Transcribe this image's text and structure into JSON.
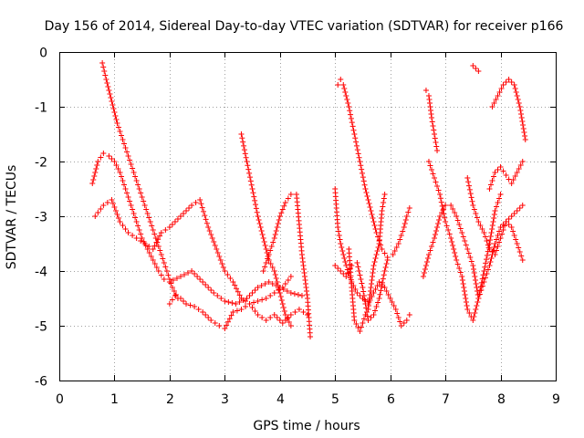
{
  "chart_data": {
    "type": "scatter",
    "title": "Day 156 of 2014, Sidereal Day-to-day VTEC variation (SDTVAR) for receiver p166",
    "xlabel": "GPS time / hours",
    "ylabel": "SDTVAR / TECUs",
    "xlim": [
      0,
      9
    ],
    "ylim": [
      -6,
      0
    ],
    "xticks": [
      0,
      1,
      2,
      3,
      4,
      5,
      6,
      7,
      8,
      9
    ],
    "yticks": [
      0,
      -1,
      -2,
      -3,
      -4,
      -5,
      -6
    ],
    "xtick_labels": [
      "0",
      "1",
      "2",
      "3",
      "4",
      "5",
      "6",
      "7",
      "8",
      "9"
    ],
    "ytick_labels": [
      "0",
      "-1",
      "-2",
      "-3",
      "-4",
      "-5",
      "-6"
    ],
    "grid": true,
    "marker": "plus",
    "color": "#ff0000",
    "series": [
      {
        "name": "track-1",
        "points": [
          [
            0.78,
            -0.2
          ],
          [
            0.85,
            -0.5
          ],
          [
            0.95,
            -0.9
          ],
          [
            1.05,
            -1.3
          ],
          [
            1.15,
            -1.6
          ],
          [
            1.25,
            -1.9
          ],
          [
            1.35,
            -2.2
          ],
          [
            1.45,
            -2.5
          ],
          [
            1.55,
            -2.8
          ],
          [
            1.65,
            -3.1
          ],
          [
            1.75,
            -3.4
          ],
          [
            1.85,
            -3.7
          ],
          [
            1.95,
            -4.0
          ],
          [
            2.05,
            -4.3
          ],
          [
            2.15,
            -4.5
          ]
        ]
      },
      {
        "name": "track-2",
        "points": [
          [
            0.6,
            -2.4
          ],
          [
            0.7,
            -2.0
          ],
          [
            0.8,
            -1.85
          ],
          [
            0.9,
            -1.9
          ],
          [
            1.0,
            -2.0
          ],
          [
            1.1,
            -2.2
          ],
          [
            1.2,
            -2.5
          ],
          [
            1.3,
            -2.8
          ],
          [
            1.4,
            -3.1
          ],
          [
            1.5,
            -3.4
          ],
          [
            1.6,
            -3.6
          ],
          [
            1.7,
            -3.8
          ],
          [
            1.8,
            -4.0
          ],
          [
            1.9,
            -4.15
          ],
          [
            2.0,
            -4.2
          ],
          [
            2.2,
            -4.1
          ],
          [
            2.4,
            -4.0
          ],
          [
            2.6,
            -4.2
          ],
          [
            2.8,
            -4.4
          ],
          [
            3.0,
            -4.55
          ],
          [
            3.2,
            -4.6
          ],
          [
            3.4,
            -4.5
          ],
          [
            3.6,
            -4.3
          ],
          [
            3.8,
            -4.2
          ],
          [
            4.0,
            -4.3
          ],
          [
            4.2,
            -4.4
          ],
          [
            4.4,
            -4.45
          ]
        ]
      },
      {
        "name": "track-3",
        "points": [
          [
            0.65,
            -3.0
          ],
          [
            0.8,
            -2.8
          ],
          [
            0.95,
            -2.7
          ],
          [
            1.1,
            -3.1
          ],
          [
            1.25,
            -3.3
          ],
          [
            1.4,
            -3.4
          ],
          [
            1.55,
            -3.5
          ],
          [
            1.7,
            -3.6
          ],
          [
            1.85,
            -3.3
          ],
          [
            2.0,
            -3.2
          ],
          [
            2.2,
            -3.0
          ],
          [
            2.4,
            -2.8
          ],
          [
            2.55,
            -2.7
          ],
          [
            2.7,
            -3.2
          ],
          [
            2.85,
            -3.6
          ],
          [
            3.0,
            -4.0
          ],
          [
            3.15,
            -4.2
          ],
          [
            3.3,
            -4.5
          ],
          [
            3.45,
            -4.6
          ],
          [
            3.6,
            -4.8
          ],
          [
            3.75,
            -4.9
          ],
          [
            3.9,
            -4.8
          ],
          [
            4.05,
            -4.95
          ],
          [
            4.2,
            -4.8
          ],
          [
            4.35,
            -4.7
          ],
          [
            4.5,
            -4.8
          ]
        ]
      },
      {
        "name": "track-4",
        "points": [
          [
            2.0,
            -4.6
          ],
          [
            2.1,
            -4.45
          ],
          [
            2.2,
            -4.5
          ],
          [
            2.3,
            -4.6
          ],
          [
            2.45,
            -4.65
          ],
          [
            2.6,
            -4.75
          ],
          [
            2.75,
            -4.9
          ],
          [
            2.9,
            -5.0
          ],
          [
            3.0,
            -5.05
          ],
          [
            3.15,
            -4.75
          ],
          [
            3.3,
            -4.7
          ],
          [
            3.45,
            -4.6
          ],
          [
            3.6,
            -4.55
          ],
          [
            3.75,
            -4.5
          ],
          [
            3.9,
            -4.4
          ],
          [
            4.05,
            -4.3
          ],
          [
            4.2,
            -4.1
          ]
        ]
      },
      {
        "name": "track-5",
        "points": [
          [
            3.3,
            -1.5
          ],
          [
            3.4,
            -2.0
          ],
          [
            3.5,
            -2.5
          ],
          [
            3.6,
            -3.0
          ],
          [
            3.7,
            -3.4
          ],
          [
            3.8,
            -3.8
          ],
          [
            3.9,
            -4.0
          ],
          [
            4.0,
            -4.4
          ],
          [
            4.1,
            -4.8
          ],
          [
            4.2,
            -5.0
          ]
        ]
      },
      {
        "name": "track-6",
        "points": [
          [
            3.7,
            -4.0
          ],
          [
            3.8,
            -3.7
          ],
          [
            3.9,
            -3.4
          ],
          [
            4.0,
            -3.0
          ],
          [
            4.1,
            -2.75
          ],
          [
            4.2,
            -2.6
          ],
          [
            4.3,
            -2.6
          ],
          [
            4.4,
            -3.7
          ],
          [
            4.5,
            -4.5
          ],
          [
            4.55,
            -5.2
          ]
        ]
      },
      {
        "name": "track-7",
        "points": [
          [
            5.0,
            -2.5
          ],
          [
            5.05,
            -3.2
          ],
          [
            5.1,
            -3.5
          ],
          [
            5.2,
            -3.9
          ],
          [
            5.3,
            -4.2
          ],
          [
            5.4,
            -4.4
          ],
          [
            5.5,
            -4.5
          ],
          [
            5.6,
            -4.6
          ],
          [
            5.7,
            -4.4
          ],
          [
            5.8,
            -4.2
          ],
          [
            5.9,
            -4.3
          ],
          [
            6.0,
            -4.5
          ],
          [
            6.1,
            -4.7
          ],
          [
            6.2,
            -5.0
          ],
          [
            6.3,
            -4.9
          ],
          [
            6.35,
            -4.8
          ]
        ]
      },
      {
        "name": "track-8",
        "points": [
          [
            5.05,
            -0.6
          ],
          [
            5.1,
            -0.5
          ],
          [
            5.15,
            -0.6
          ],
          [
            5.25,
            -1.0
          ],
          [
            5.35,
            -1.5
          ],
          [
            5.45,
            -2.0
          ],
          [
            5.55,
            -2.5
          ],
          [
            5.65,
            -2.9
          ],
          [
            5.75,
            -3.3
          ],
          [
            5.85,
            -3.6
          ],
          [
            5.95,
            -3.75
          ],
          [
            6.05,
            -3.7
          ],
          [
            6.15,
            -3.5
          ],
          [
            6.25,
            -3.2
          ],
          [
            6.3,
            -3.0
          ],
          [
            6.35,
            -2.85
          ]
        ]
      },
      {
        "name": "track-9",
        "points": [
          [
            5.0,
            -3.9
          ],
          [
            5.1,
            -4.0
          ],
          [
            5.2,
            -4.1
          ],
          [
            5.3,
            -3.9
          ],
          [
            5.4,
            -3.85
          ],
          [
            5.5,
            -4.3
          ],
          [
            5.55,
            -4.6
          ],
          [
            5.6,
            -4.9
          ],
          [
            5.7,
            -4.8
          ],
          [
            5.8,
            -4.5
          ],
          [
            5.9,
            -4.0
          ],
          [
            5.95,
            -3.8
          ]
        ]
      },
      {
        "name": "track-10",
        "points": [
          [
            5.25,
            -3.6
          ],
          [
            5.3,
            -4.3
          ],
          [
            5.35,
            -4.9
          ],
          [
            5.45,
            -5.1
          ],
          [
            5.55,
            -4.8
          ],
          [
            5.6,
            -4.7
          ],
          [
            5.7,
            -3.9
          ],
          [
            5.8,
            -3.5
          ],
          [
            5.85,
            -2.9
          ],
          [
            5.9,
            -2.6
          ]
        ]
      },
      {
        "name": "track-11",
        "points": [
          [
            6.6,
            -4.1
          ],
          [
            6.7,
            -3.7
          ],
          [
            6.8,
            -3.4
          ],
          [
            6.9,
            -3.0
          ],
          [
            7.0,
            -2.8
          ],
          [
            7.1,
            -2.8
          ],
          [
            7.2,
            -3.0
          ],
          [
            7.3,
            -3.3
          ],
          [
            7.4,
            -3.6
          ],
          [
            7.5,
            -3.9
          ],
          [
            7.6,
            -4.5
          ],
          [
            7.7,
            -4.2
          ],
          [
            7.8,
            -3.9
          ],
          [
            7.9,
            -3.5
          ],
          [
            8.0,
            -3.2
          ],
          [
            8.1,
            -3.1
          ],
          [
            8.2,
            -3.0
          ],
          [
            8.3,
            -2.9
          ],
          [
            8.4,
            -2.8
          ]
        ]
      },
      {
        "name": "track-12",
        "points": [
          [
            6.65,
            -0.7
          ],
          [
            6.7,
            -0.8
          ],
          [
            6.75,
            -1.2
          ],
          [
            6.8,
            -1.5
          ],
          [
            6.85,
            -1.8
          ]
        ]
      },
      {
        "name": "track-13",
        "points": [
          [
            6.7,
            -2.0
          ],
          [
            6.8,
            -2.3
          ],
          [
            6.9,
            -2.6
          ],
          [
            7.0,
            -3.1
          ],
          [
            7.1,
            -3.4
          ],
          [
            7.2,
            -3.8
          ],
          [
            7.3,
            -4.1
          ],
          [
            7.4,
            -4.7
          ],
          [
            7.5,
            -4.9
          ],
          [
            7.6,
            -4.5
          ],
          [
            7.7,
            -4.0
          ],
          [
            7.8,
            -3.5
          ],
          [
            7.9,
            -2.9
          ],
          [
            8.0,
            -2.6
          ]
        ]
      },
      {
        "name": "track-14",
        "points": [
          [
            7.5,
            -0.25
          ],
          [
            7.55,
            -0.3
          ],
          [
            7.6,
            -0.35
          ]
        ]
      },
      {
        "name": "track-15",
        "points": [
          [
            7.85,
            -1.0
          ],
          [
            7.95,
            -0.8
          ],
          [
            8.05,
            -0.6
          ],
          [
            8.15,
            -0.5
          ],
          [
            8.25,
            -0.6
          ],
          [
            8.35,
            -1.0
          ],
          [
            8.45,
            -1.6
          ]
        ]
      },
      {
        "name": "track-16",
        "points": [
          [
            7.8,
            -2.5
          ],
          [
            7.9,
            -2.2
          ],
          [
            8.0,
            -2.1
          ],
          [
            8.1,
            -2.25
          ],
          [
            8.2,
            -2.4
          ],
          [
            8.3,
            -2.2
          ],
          [
            8.4,
            -2.0
          ]
        ]
      },
      {
        "name": "track-17",
        "points": [
          [
            7.4,
            -2.3
          ],
          [
            7.5,
            -2.8
          ],
          [
            7.6,
            -3.1
          ],
          [
            7.7,
            -3.3
          ],
          [
            7.8,
            -3.6
          ],
          [
            7.9,
            -3.7
          ],
          [
            8.0,
            -3.4
          ],
          [
            8.1,
            -3.1
          ],
          [
            8.2,
            -3.2
          ],
          [
            8.3,
            -3.5
          ],
          [
            8.4,
            -3.8
          ]
        ]
      }
    ]
  }
}
